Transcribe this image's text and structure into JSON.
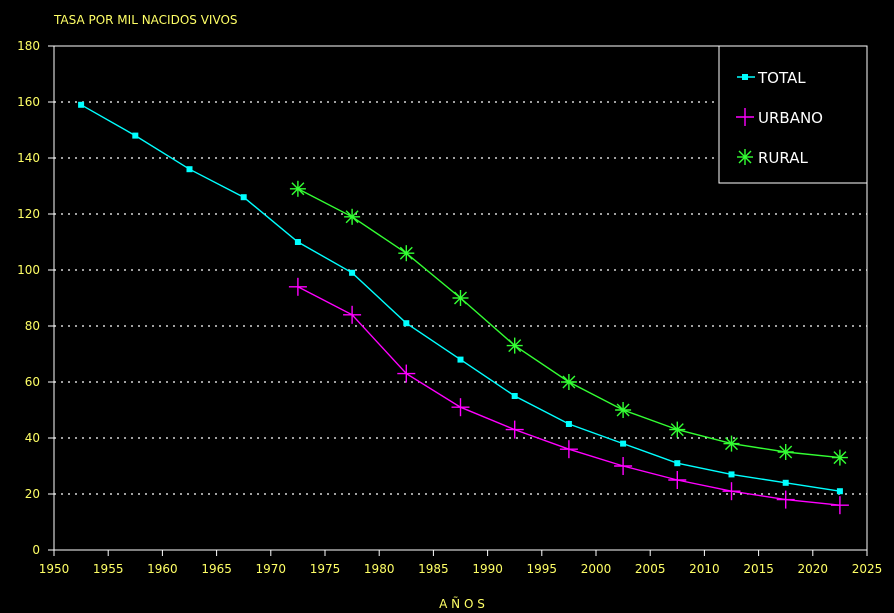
{
  "chart_data": {
    "type": "line",
    "title": "TASA POR MIL NACIDOS VIVOS",
    "xlabel": "A Ñ O S",
    "ylabel": "",
    "xlim": [
      1950,
      2025
    ],
    "ylim": [
      0,
      180
    ],
    "x_ticks": [
      1950,
      1955,
      1960,
      1965,
      1970,
      1975,
      1980,
      1985,
      1990,
      1995,
      2000,
      2005,
      2010,
      2015,
      2020,
      2025
    ],
    "y_ticks": [
      0,
      20,
      40,
      60,
      80,
      100,
      120,
      140,
      160,
      180
    ],
    "grid": "horizontal-dotted",
    "legend_position": "top-right",
    "series": [
      {
        "name": "TOTAL",
        "color": "#00ffff",
        "marker": "square",
        "x": [
          1952.5,
          1957.5,
          1962.5,
          1967.5,
          1972.5,
          1977.5,
          1982.5,
          1987.5,
          1992.5,
          1997.5,
          2002.5,
          2007.5,
          2012.5,
          2017.5,
          2022.5
        ],
        "y": [
          159,
          148,
          136,
          126,
          110,
          99,
          81,
          68,
          55,
          45,
          38,
          31,
          27,
          24,
          21
        ]
      },
      {
        "name": "URBANO",
        "color": "#ff00ff",
        "marker": "plus",
        "x": [
          1972.5,
          1977.5,
          1982.5,
          1987.5,
          1992.5,
          1997.5,
          2002.5,
          2007.5,
          2012.5,
          2017.5,
          2022.5
        ],
        "y": [
          94,
          84,
          63,
          51,
          43,
          36,
          30,
          25,
          21,
          18,
          16
        ]
      },
      {
        "name": "RURAL",
        "color": "#33ff33",
        "marker": "asterisk",
        "x": [
          1972.5,
          1977.5,
          1982.5,
          1987.5,
          1992.5,
          1997.5,
          2002.5,
          2007.5,
          2012.5,
          2017.5,
          2022.5
        ],
        "y": [
          129,
          119,
          106,
          90,
          73,
          60,
          50,
          43,
          38,
          35,
          33
        ]
      }
    ]
  },
  "colors": {
    "background": "#000000",
    "axis": "#ffffff",
    "text": "#ffff66",
    "grid": "#ffffff"
  }
}
